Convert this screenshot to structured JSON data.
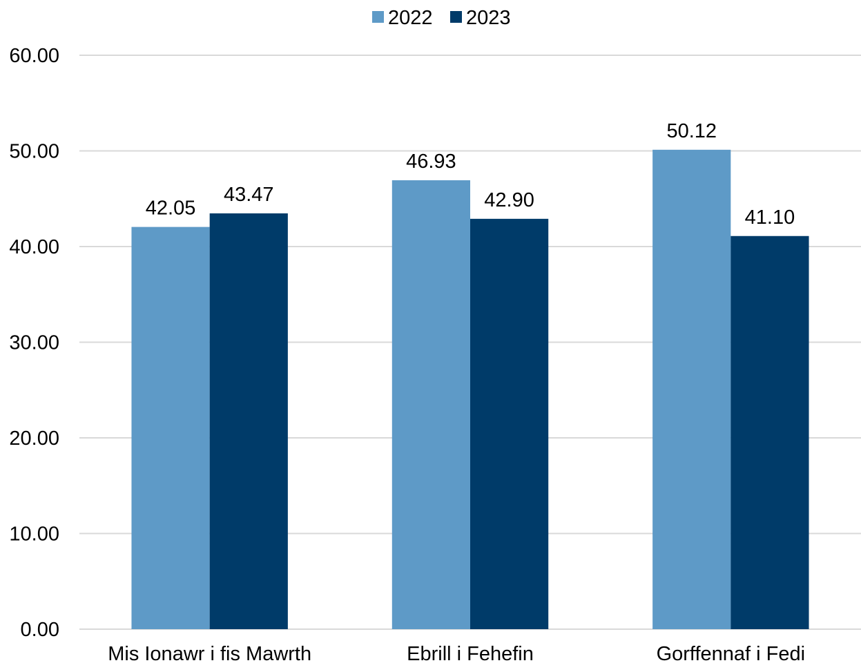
{
  "chart_data": {
    "type": "bar",
    "categories": [
      "Mis Ionawr i fis Mawrth",
      "Ebrill i Fehefin",
      "Gorffennaf i Fedi"
    ],
    "series": [
      {
        "name": "2022",
        "values": [
          42.05,
          46.93,
          50.12
        ],
        "color": "#5e9ac7"
      },
      {
        "name": "2023",
        "values": [
          43.47,
          42.9,
          41.1
        ],
        "color": "#003b69"
      }
    ],
    "data_labels": [
      [
        "42.05",
        "46.93",
        "50.12"
      ],
      [
        "43.47",
        "42.90",
        "41.10"
      ]
    ],
    "y_ticks": [
      "0.00",
      "10.00",
      "20.00",
      "30.00",
      "40.00",
      "50.00",
      "60.00"
    ],
    "ylim": [
      0,
      60
    ],
    "grid": true,
    "legend_position": "top-center",
    "title": "",
    "xlabel": "",
    "ylabel": ""
  }
}
